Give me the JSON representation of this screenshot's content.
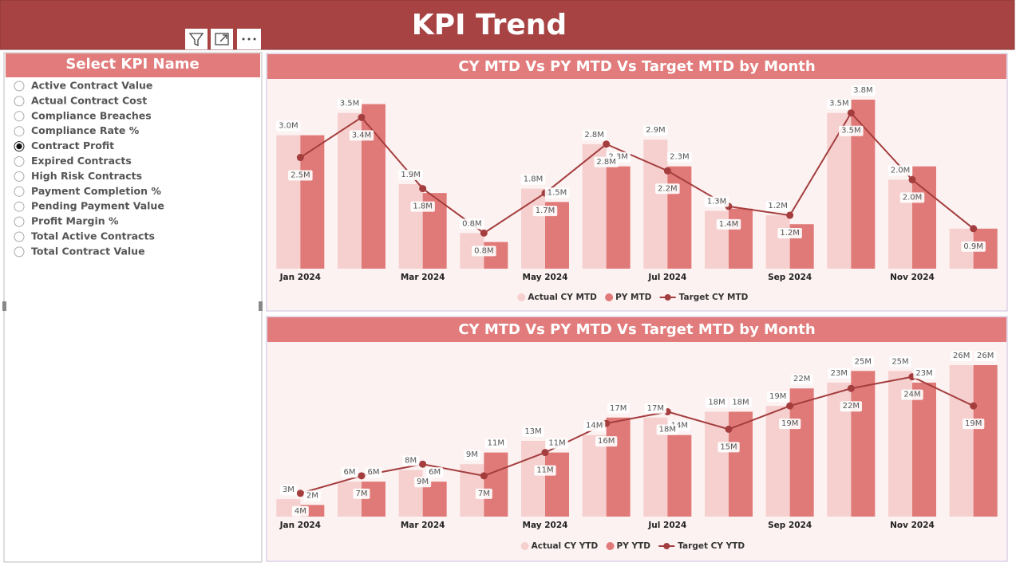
{
  "header": {
    "title": "KPI Trend"
  },
  "slicer": {
    "title": "Select KPI Name",
    "items": [
      "Active Contract Value",
      "Actual Contract Cost",
      "Compliance Breaches",
      "Compliance Rate %",
      "Contract Profit",
      "Expired Contracts",
      "High Risk Contracts",
      "Payment Completion %",
      "Pending Payment Value",
      "Profit Margin %",
      "Total Active Contracts",
      "Total Contract Value"
    ],
    "selected_index": 4
  },
  "chart_data": [
    {
      "type": "combo",
      "title": "CY MTD Vs PY MTD Vs Target MTD by Month",
      "categories": [
        "Jan 2024",
        null,
        "Mar 2024",
        null,
        "May 2024",
        null,
        "Jul 2024",
        null,
        "Sep 2024",
        null,
        "Nov 2024",
        null
      ],
      "series": [
        {
          "name": "Actual CY MTD",
          "kind": "bar",
          "color": "#f5d0cf",
          "values": [
            3.0,
            3.5,
            1.9,
            0.8,
            1.8,
            2.8,
            2.9,
            1.3,
            1.2,
            3.5,
            2.0,
            0.9
          ],
          "value_labels": [
            "3.0M",
            "3.5M",
            "1.9M",
            "0.8M",
            "1.8M",
            "2.8M",
            "2.9M",
            "1.3M",
            "1.2M",
            "3.5M",
            "2.0M",
            null
          ]
        },
        {
          "name": "PY MTD",
          "kind": "bar",
          "color": "#e07a78",
          "values": [
            3.0,
            3.7,
            1.7,
            0.6,
            1.5,
            2.3,
            2.3,
            1.35,
            1.0,
            3.8,
            2.3,
            0.9
          ],
          "value_labels": [
            null,
            null,
            null,
            null,
            "1.5M",
            "2.3M",
            "2.3M",
            null,
            null,
            "3.8M",
            null,
            null
          ]
        },
        {
          "name": "Target CY MTD",
          "kind": "line",
          "color": "#a43d3d",
          "values": [
            2.5,
            3.4,
            1.8,
            0.8,
            1.7,
            2.8,
            2.2,
            1.4,
            1.2,
            3.5,
            2.0,
            0.9
          ],
          "value_labels": [
            "2.5M",
            "3.4M",
            "1.8M",
            "0.8M",
            "1.7M",
            "2.8M",
            "2.2M",
            "1.4M",
            "1.2M",
            "3.5M",
            "2.0M",
            "0.9M"
          ]
        }
      ]
    },
    {
      "type": "combo",
      "title": "CY MTD Vs PY MTD Vs Target MTD by Month",
      "categories": [
        "Jan 2024",
        null,
        "Mar 2024",
        null,
        "May 2024",
        null,
        "Jul 2024",
        null,
        "Sep 2024",
        null,
        "Nov 2024",
        null
      ],
      "series": [
        {
          "name": "Actual CY YTD",
          "kind": "bar",
          "color": "#f5d0cf",
          "values": [
            3,
            6,
            8,
            9,
            13,
            14,
            17,
            18,
            19,
            23,
            25,
            26
          ],
          "value_labels": [
            "3M",
            "6M",
            "8M",
            "9M",
            "13M",
            "14M",
            "17M",
            "18M",
            "19M",
            "23M",
            "25M",
            "26M"
          ]
        },
        {
          "name": "PY YTD",
          "kind": "bar",
          "color": "#e07a78",
          "values": [
            2,
            6,
            6,
            11,
            11,
            17,
            14,
            18,
            22,
            25,
            23,
            26
          ],
          "value_labels": [
            "2M",
            "6M",
            "6M",
            "11M",
            "11M",
            "17M",
            "14M",
            "18M",
            "22M",
            "25M",
            "23M",
            "26M"
          ]
        },
        {
          "name": "Target CY YTD",
          "kind": "line",
          "color": "#a43d3d",
          "values": [
            4,
            7,
            9,
            7,
            11,
            16,
            18,
            15,
            19,
            22,
            24,
            19
          ],
          "value_labels": [
            "4M",
            "7M",
            "9M",
            "7M",
            "11M",
            "16M",
            "18M",
            "15M",
            "19M",
            "22M",
            "24M",
            "19M"
          ]
        }
      ]
    }
  ]
}
